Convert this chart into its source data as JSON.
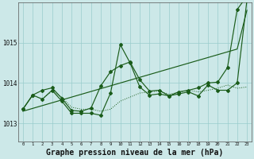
{
  "title": "Graphe pression niveau de la mer (hPa)",
  "hours": [
    0,
    1,
    2,
    3,
    4,
    5,
    6,
    7,
    8,
    9,
    10,
    11,
    12,
    13,
    14,
    15,
    16,
    17,
    18,
    19,
    20,
    21,
    22,
    23
  ],
  "series_trend": [
    1013.3,
    1013.37,
    1013.44,
    1013.51,
    1013.58,
    1013.65,
    1013.72,
    1013.79,
    1013.86,
    1013.93,
    1014.0,
    1014.07,
    1014.14,
    1014.21,
    1014.28,
    1014.35,
    1014.42,
    1014.49,
    1014.56,
    1014.63,
    1014.7,
    1014.77,
    1014.84,
    1015.8
  ],
  "series_dotted": [
    1013.35,
    1013.7,
    1013.6,
    1013.8,
    1013.65,
    1013.4,
    1013.35,
    1013.35,
    1013.3,
    1013.35,
    1013.55,
    1013.65,
    1013.75,
    1013.78,
    1013.8,
    1013.72,
    1013.77,
    1013.82,
    1013.78,
    1013.82,
    1013.87,
    1013.95,
    1013.87,
    1013.9
  ],
  "series_zigzag": [
    1013.35,
    1013.7,
    1013.6,
    1013.82,
    1013.55,
    1013.25,
    1013.25,
    1013.25,
    1013.2,
    1013.75,
    1014.95,
    1014.5,
    1013.9,
    1013.7,
    1013.73,
    1013.68,
    1013.73,
    1013.78,
    1013.68,
    1013.95,
    1013.82,
    1013.82,
    1014.0,
    1016.05
  ],
  "series_upper": [
    1013.35,
    1013.7,
    1013.82,
    1013.88,
    1013.62,
    1013.32,
    1013.3,
    1013.38,
    1013.93,
    1014.28,
    1014.43,
    1014.52,
    1014.08,
    1013.8,
    1013.82,
    1013.68,
    1013.78,
    1013.82,
    1013.88,
    1014.0,
    1014.02,
    1014.38,
    1015.82,
    1016.15
  ],
  "ylim": [
    1012.55,
    1016.0
  ],
  "ytick_vals": [
    1013.0,
    1014.0,
    1015.0
  ],
  "ytick_labels": [
    "1013",
    "1014",
    "1015"
  ],
  "bg_color": "#cce8e8",
  "grid_color": "#99cccc",
  "line_color": "#1a5c1a",
  "title_fontsize": 7.0
}
